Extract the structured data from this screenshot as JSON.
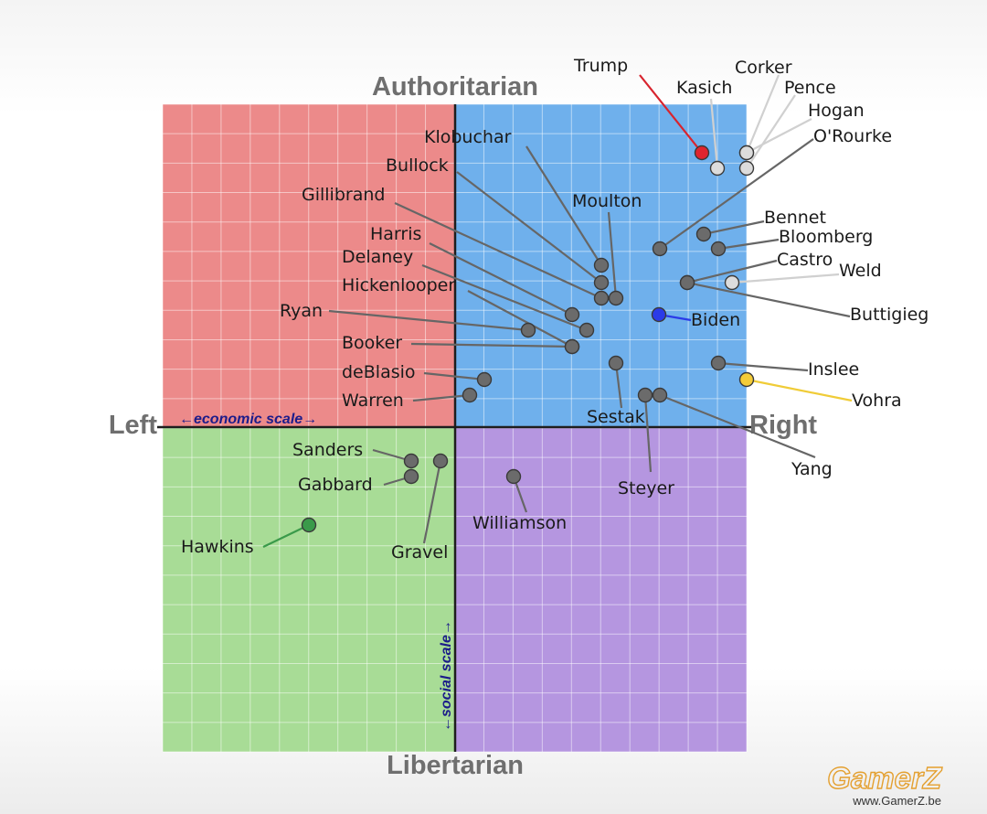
{
  "chart_data": {
    "type": "scatter",
    "title": "",
    "quadrant_colors": {
      "authoritarian_left": "#ec8a8a",
      "authoritarian_right": "#6fb0ec",
      "libertarian_left": "#a8dc96",
      "libertarian_right": "#b596e0"
    },
    "axes": {
      "top": "Authoritarian",
      "bottom": "Libertarian",
      "left": "Left",
      "right": "Right",
      "x_scale_label": "←economic scale→",
      "y_scale_label": "←social scale→",
      "xlim": [
        -10,
        10
      ],
      "ylim": [
        -11,
        11
      ],
      "grid": true
    },
    "points": [
      {
        "name": "Trump",
        "x": 8.5,
        "y": 9.3,
        "color": "#e0242e"
      },
      {
        "name": "Kasich",
        "x": 9.1,
        "y": 8.7,
        "color": "#dcdcdc"
      },
      {
        "name": "Corker",
        "x": 10.0,
        "y": 9.3,
        "color": "#dcdcdc"
      },
      {
        "name": "Pence",
        "x": 10.0,
        "y": 8.7,
        "color": "#dcdcdc"
      },
      {
        "name": "Hogan",
        "x": 10.0,
        "y": 9.3,
        "color": "#dcdcdc"
      },
      {
        "name": "O'Rourke",
        "x": 7.0,
        "y": 6.1,
        "color": "#6b6b6b"
      },
      {
        "name": "Bennet",
        "x": 8.5,
        "y": 6.6,
        "color": "#6b6b6b"
      },
      {
        "name": "Bloomberg",
        "x": 9.0,
        "y": 6.1,
        "color": "#6b6b6b"
      },
      {
        "name": "Castro",
        "x": 7.8,
        "y": 4.9,
        "color": "#6b6b6b"
      },
      {
        "name": "Weld",
        "x": 9.5,
        "y": 4.9,
        "color": "#dcdcdc"
      },
      {
        "name": "Buttigieg",
        "x": 7.6,
        "y": 4.9,
        "color": "#6b6b6b"
      },
      {
        "name": "Biden",
        "x": 7.0,
        "y": 3.8,
        "color": "#2b3be8"
      },
      {
        "name": "Inslee",
        "x": 9.0,
        "y": 2.2,
        "color": "#6b6b6b"
      },
      {
        "name": "Vohra",
        "x": 10.0,
        "y": 1.6,
        "color": "#f4cc38"
      },
      {
        "name": "Yang",
        "x": 7.0,
        "y": 1.1,
        "color": "#6b6b6b"
      },
      {
        "name": "Steyer",
        "x": 6.5,
        "y": 1.1,
        "color": "#6b6b6b"
      },
      {
        "name": "Sestak",
        "x": 5.5,
        "y": 2.2,
        "color": "#6b6b6b"
      },
      {
        "name": "Moulton",
        "x": 5.5,
        "y": 4.4,
        "color": "#6b6b6b"
      },
      {
        "name": "Klobuchar",
        "x": 5.0,
        "y": 5.5,
        "color": "#6b6b6b"
      },
      {
        "name": "Bullock",
        "x": 5.0,
        "y": 5.0,
        "color": "#6b6b6b"
      },
      {
        "name": "Gillibrand",
        "x": 5.0,
        "y": 4.4,
        "color": "#6b6b6b"
      },
      {
        "name": "Harris",
        "x": 4.0,
        "y": 3.9,
        "color": "#6b6b6b"
      },
      {
        "name": "Delaney",
        "x": 4.5,
        "y": 3.3,
        "color": "#6b6b6b"
      },
      {
        "name": "Hickenlooper",
        "x": 4.0,
        "y": 2.8,
        "color": "#6b6b6b"
      },
      {
        "name": "Ryan",
        "x": 2.5,
        "y": 3.3,
        "color": "#6b6b6b"
      },
      {
        "name": "Booker",
        "x": 4.0,
        "y": 2.8,
        "color": "#6b6b6b"
      },
      {
        "name": "deBlasio",
        "x": 1.0,
        "y": 1.6,
        "color": "#6b6b6b"
      },
      {
        "name": "Warren",
        "x": 0.5,
        "y": 1.1,
        "color": "#6b6b6b"
      },
      {
        "name": "Sanders",
        "x": -1.5,
        "y": -1.1,
        "color": "#6b6b6b"
      },
      {
        "name": "Gabbard",
        "x": -1.5,
        "y": -1.6,
        "color": "#6b6b6b"
      },
      {
        "name": "Gravel",
        "x": -0.5,
        "y": -1.1,
        "color": "#6b6b6b"
      },
      {
        "name": "Williamson",
        "x": 2.0,
        "y": -1.6,
        "color": "#6b6b6b"
      },
      {
        "name": "Hawkins",
        "x": -5.0,
        "y": -3.3,
        "color": "#3a9a4a"
      }
    ]
  },
  "watermark": {
    "brand": "GamerZ",
    "url": "www.GamerZ.be"
  }
}
